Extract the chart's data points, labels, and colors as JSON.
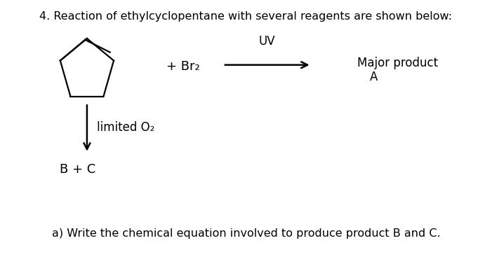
{
  "title": "4. Reaction of ethylcyclopentane with several reagents are shown below:",
  "title_fontsize": 11.5,
  "background_color": "#ffffff",
  "text_color": "#000000",
  "font_family": "DejaVu Sans",
  "reagent_br2": "+ Br₂",
  "uv_label": "UV",
  "major_product": "Major product",
  "product_A": "A",
  "limited_o2": "limited O₂",
  "bc_label": "B + C",
  "question": "a) Write the chemical equation involved to produce product B and C.",
  "lw": 1.6
}
